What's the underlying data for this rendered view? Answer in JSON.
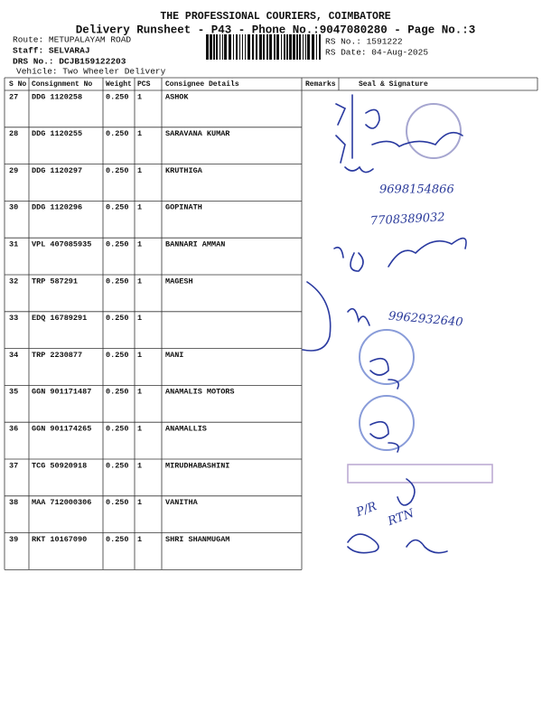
{
  "header": {
    "company": "THE PROFESSIONAL COURIERS, COIMBATORE",
    "subtitle": "Delivery Runsheet - P43 - Phone No.:9047080280 - Page No.:3",
    "route": "Route: METUPALAYAM ROAD",
    "staff": "Staff: SELVARAJ",
    "drs": "DRS No.: DCJB159122203",
    "vehicle": "Vehicle: Two Wheeler Delivery",
    "rs_no": "RS No.: 1591222",
    "rs_date": "RS Date: 04-Aug-2025"
  },
  "table": {
    "columns": [
      "S No",
      "Consignment No",
      "Weight",
      "PCS",
      "Consignee Details",
      "Remarks",
      "Seal & Signature"
    ],
    "rows": [
      [
        "27",
        "DDG 1120258",
        "0.250",
        "1",
        "ASHOK"
      ],
      [
        "28",
        "DDG 1120255",
        "0.250",
        "1",
        "SARAVANA KUMAR"
      ],
      [
        "29",
        "DDG 1120297",
        "0.250",
        "1",
        "KRUTHIGA"
      ],
      [
        "30",
        "DDG 1120296",
        "0.250",
        "1",
        "GOPINATH"
      ],
      [
        "31",
        "VPL 407085935",
        "0.250",
        "1",
        "BANNARI AMMAN"
      ],
      [
        "32",
        "TRP 587291",
        "0.250",
        "1",
        "MAGESH"
      ],
      [
        "33",
        "EDQ 16789291",
        "0.250",
        "1",
        null
      ],
      [
        "34",
        "TRP 2230877",
        "0.250",
        "1",
        "MANI"
      ],
      [
        "35",
        "GGN 901171487",
        "0.250",
        "1",
        "ANAMALIS MOTORS"
      ],
      [
        "36",
        "GGN 901174265",
        "0.250",
        "1",
        "ANAMALLIS"
      ],
      [
        "37",
        "TCG 50920918",
        "0.250",
        "1",
        "MIRUDHABASHINI"
      ],
      [
        "38",
        "MAA 712000306",
        "0.250",
        "1",
        "VANITHA"
      ],
      [
        "39",
        "RKT 10167090",
        "0.250",
        "1",
        "SHRI SHANMUGAM"
      ]
    ]
  },
  "handwritten": [
    "9698154866",
    "7708389032",
    "9962932640",
    "P/R",
    "RTN"
  ]
}
